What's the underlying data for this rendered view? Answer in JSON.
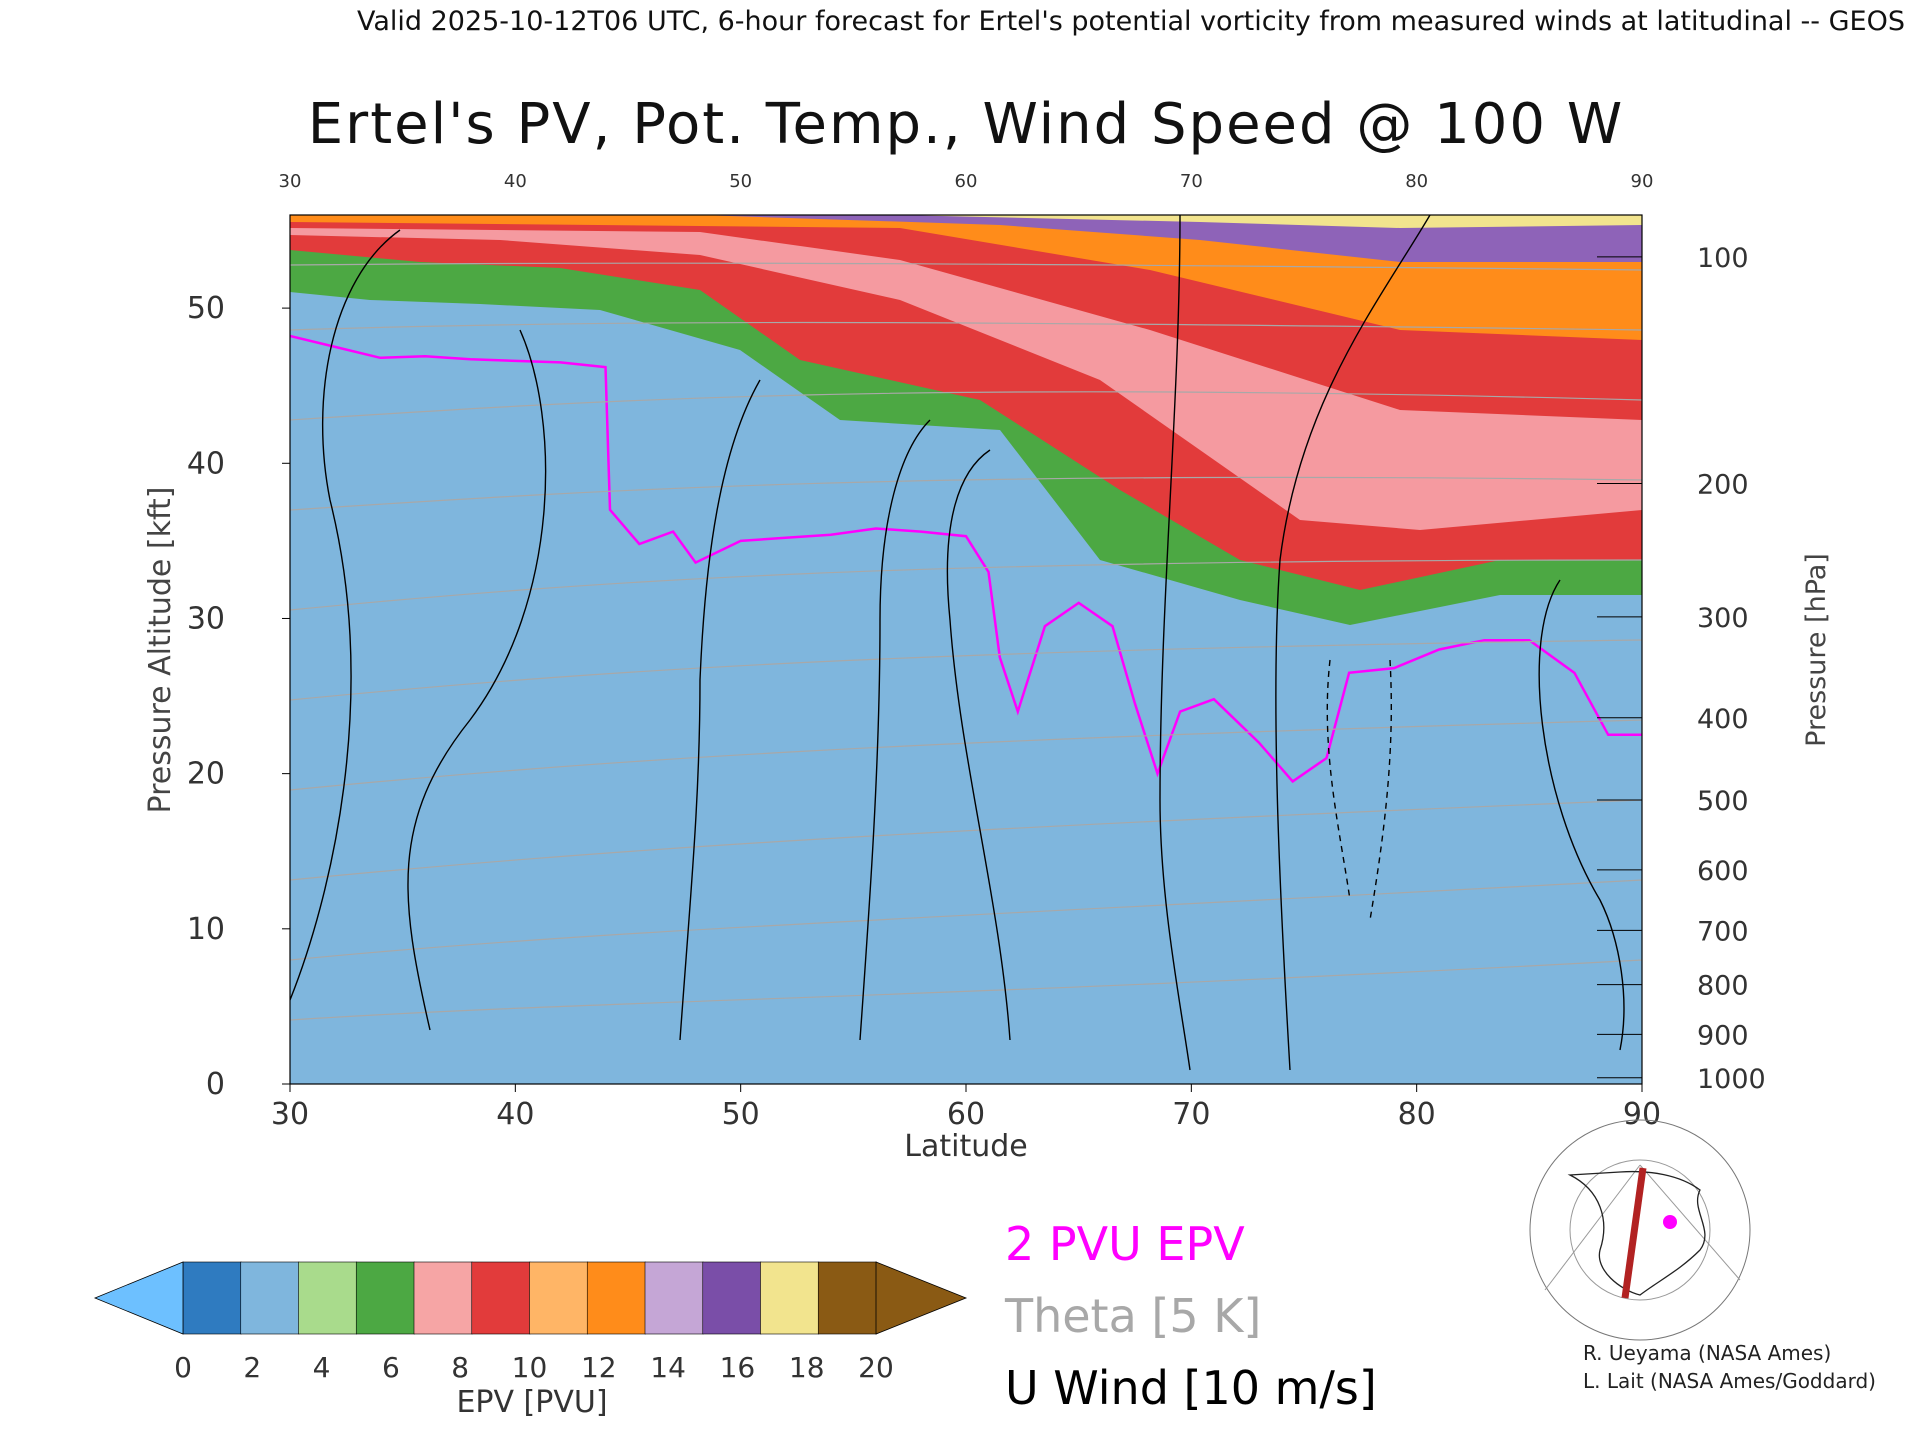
{
  "header": {
    "top_line": "Valid 2025-10-12T06 UTC, 6-hour forecast for Ertel's potential vorticity from measured winds at latitudinal -- GEOS"
  },
  "chart_data": {
    "type": "heatmap",
    "title": "Ertel's PV, Pot. Temp., Wind Speed @ 100 W",
    "xlabel": "Latitude",
    "ylabel": "Pressure Altitude [kft]",
    "y2label": "Pressure [hPa]",
    "xlim": [
      30,
      90
    ],
    "ylim": [
      0,
      56
    ],
    "x_ticks": [
      "30",
      "40",
      "50",
      "60",
      "70",
      "80",
      "90"
    ],
    "x_ticks_top": [
      "30",
      "40",
      "50",
      "60",
      "70",
      "80",
      "90"
    ],
    "y_ticks": [
      "0",
      "10",
      "20",
      "30",
      "40",
      "50"
    ],
    "y2_ticks": [
      {
        "label": "100",
        "kft": 53.3
      },
      {
        "label": "200",
        "kft": 38.7
      },
      {
        "label": "300",
        "kft": 30.1
      },
      {
        "label": "400",
        "kft": 23.6
      },
      {
        "label": "500",
        "kft": 18.3
      },
      {
        "label": "600",
        "kft": 13.8
      },
      {
        "label": "700",
        "kft": 9.9
      },
      {
        "label": "800",
        "kft": 6.4
      },
      {
        "label": "900",
        "kft": 3.2
      },
      {
        "label": "1000",
        "kft": 0.4
      }
    ],
    "tropopause_2pvu": [
      [
        30,
        48.2
      ],
      [
        32,
        47.5
      ],
      [
        34,
        46.8
      ],
      [
        36,
        46.9
      ],
      [
        38,
        46.7
      ],
      [
        40,
        46.6
      ],
      [
        42,
        46.5
      ],
      [
        44,
        46.2
      ],
      [
        44.2,
        37.0
      ],
      [
        45.5,
        34.8
      ],
      [
        47,
        35.6
      ],
      [
        48,
        33.6
      ],
      [
        50,
        35.0
      ],
      [
        52,
        35.2
      ],
      [
        54,
        35.4
      ],
      [
        56,
        35.8
      ],
      [
        58,
        35.6
      ],
      [
        60,
        35.3
      ],
      [
        61,
        33.0
      ],
      [
        61.5,
        27.5
      ],
      [
        62.3,
        24.0
      ],
      [
        63.5,
        29.5
      ],
      [
        65,
        31.0
      ],
      [
        66.5,
        29.5
      ],
      [
        67.5,
        24.5
      ],
      [
        68.5,
        20.0
      ],
      [
        69.5,
        24.0
      ],
      [
        71,
        24.8
      ],
      [
        73,
        22.0
      ],
      [
        74.5,
        19.5
      ],
      [
        76,
        21.0
      ],
      [
        77,
        26.5
      ],
      [
        79,
        26.8
      ],
      [
        81,
        28.0
      ],
      [
        83,
        28.6
      ],
      [
        85,
        28.6
      ],
      [
        87,
        26.5
      ],
      [
        88.5,
        22.5
      ],
      [
        90,
        22.5
      ]
    ],
    "colorbar": {
      "label": "EPV [PVU]",
      "ticks": [
        "0",
        "2",
        "4",
        "6",
        "8",
        "10",
        "12",
        "14",
        "16",
        "18",
        "20"
      ],
      "colors": [
        "#2f7bc0",
        "#7fb6dd",
        "#a9db8c",
        "#4ca843",
        "#f6a5a5",
        "#e23b3b",
        "#ffb566",
        "#ff8c1a",
        "#c5a6d6",
        "#7a4ea8",
        "#f2e48e",
        "#8a5a14"
      ],
      "under_color": "#6dc0ff",
      "over_color": "#8a5a14"
    },
    "legend": [
      {
        "label": "2 PVU EPV",
        "color": "#ff00ff"
      },
      {
        "label": "Theta [5 K]",
        "color": "#a8a8a8"
      },
      {
        "label": "U Wind [10 m/s]",
        "color": "#000000"
      }
    ]
  },
  "credits": [
    "R. Ueyama (NASA Ames)",
    "L. Lait (NASA Ames/Goddard)"
  ]
}
